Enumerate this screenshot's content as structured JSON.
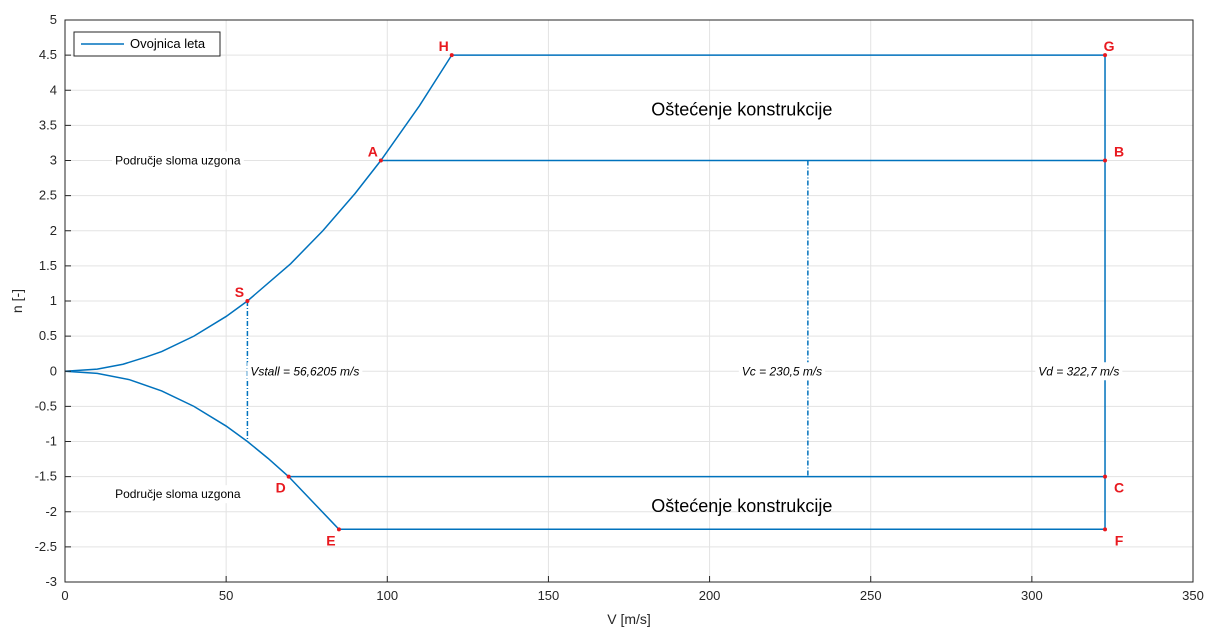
{
  "chart_data": {
    "type": "line",
    "xlabel": "V [m/s]",
    "ylabel": "n [-]",
    "xlim": [
      0,
      350
    ],
    "ylim": [
      -3,
      5
    ],
    "xticks": [
      0,
      50,
      100,
      150,
      200,
      250,
      300,
      350
    ],
    "yticks": [
      -3,
      -2.5,
      -2,
      -1.5,
      -1,
      -0.5,
      0,
      0.5,
      1,
      1.5,
      2,
      2.5,
      3,
      3.5,
      4,
      4.5,
      5
    ],
    "grid": true,
    "legend": {
      "location": "top-left",
      "entries": [
        "Ovojnica leta"
      ]
    },
    "series_color": "#0072BD",
    "point_color": "#e8191f",
    "series": [
      {
        "name": "Ovojnica leta",
        "upper_curve": [
          [
            0,
            0
          ],
          [
            10,
            0.03
          ],
          [
            18,
            0.1
          ],
          [
            25,
            0.2
          ],
          [
            30,
            0.28
          ],
          [
            40,
            0.5
          ],
          [
            50,
            0.78
          ],
          [
            56.6,
            1
          ],
          [
            70,
            1.53
          ],
          [
            80,
            2.0
          ],
          [
            90,
            2.53
          ],
          [
            98,
            3
          ],
          [
            110,
            3.78
          ],
          [
            120,
            4.5
          ]
        ],
        "lower_curve": [
          [
            0,
            0
          ],
          [
            10,
            -0.03
          ],
          [
            20,
            -0.12
          ],
          [
            30,
            -0.28
          ],
          [
            40,
            -0.5
          ],
          [
            50,
            -0.78
          ],
          [
            56.6,
            -1
          ],
          [
            63,
            -1.24
          ],
          [
            69.4,
            -1.5
          ],
          [
            85,
            -2.25
          ]
        ],
        "segments": [
          [
            [
              120,
              4.5
            ],
            [
              322.7,
              4.5
            ]
          ],
          [
            [
              98,
              3
            ],
            [
              322.7,
              3
            ]
          ],
          [
            [
              69.4,
              -1.5
            ],
            [
              322.7,
              -1.5
            ]
          ],
          [
            [
              85,
              -2.25
            ],
            [
              322.7,
              -2.25
            ]
          ],
          [
            [
              322.7,
              4.5
            ],
            [
              322.7,
              -2.25
            ]
          ]
        ],
        "dashed": [
          [
            [
              56.6,
              1
            ],
            [
              56.6,
              -1
            ]
          ],
          [
            [
              230.5,
              3
            ],
            [
              230.5,
              -1.5
            ]
          ]
        ]
      }
    ],
    "points": [
      {
        "label": "H",
        "x": 120,
        "y": 4.5
      },
      {
        "label": "G",
        "x": 322.7,
        "y": 4.5
      },
      {
        "label": "A",
        "x": 98,
        "y": 3
      },
      {
        "label": "B",
        "x": 322.7,
        "y": 3
      },
      {
        "label": "S",
        "x": 56.6,
        "y": 1
      },
      {
        "label": "D",
        "x": 69.4,
        "y": -1.5
      },
      {
        "label": "C",
        "x": 322.7,
        "y": -1.5
      },
      {
        "label": "E",
        "x": 85,
        "y": -2.25
      },
      {
        "label": "F",
        "x": 322.7,
        "y": -2.25
      }
    ],
    "annotations": [
      {
        "text": "Oštećenje konstrukcije",
        "x": 210,
        "y": 3.7,
        "size": "large"
      },
      {
        "text": "Oštećenje konstrukcije",
        "x": 210,
        "y": -1.95,
        "size": "large"
      },
      {
        "text": "Područje sloma uzgona",
        "x": 35,
        "y": 3,
        "size": "small"
      },
      {
        "text": "Područje sloma uzgona",
        "x": 35,
        "y": -1.75,
        "size": "small"
      },
      {
        "text": "Vstall = 56,6205 m/s",
        "x": 57.5,
        "y": 0,
        "size": "italic"
      },
      {
        "text": "Vc = 230,5 m/s",
        "x": 210,
        "y": 0,
        "size": "italic"
      },
      {
        "text": "Vd = 322,7 m/s",
        "x": 302,
        "y": 0,
        "size": "italic"
      }
    ]
  }
}
